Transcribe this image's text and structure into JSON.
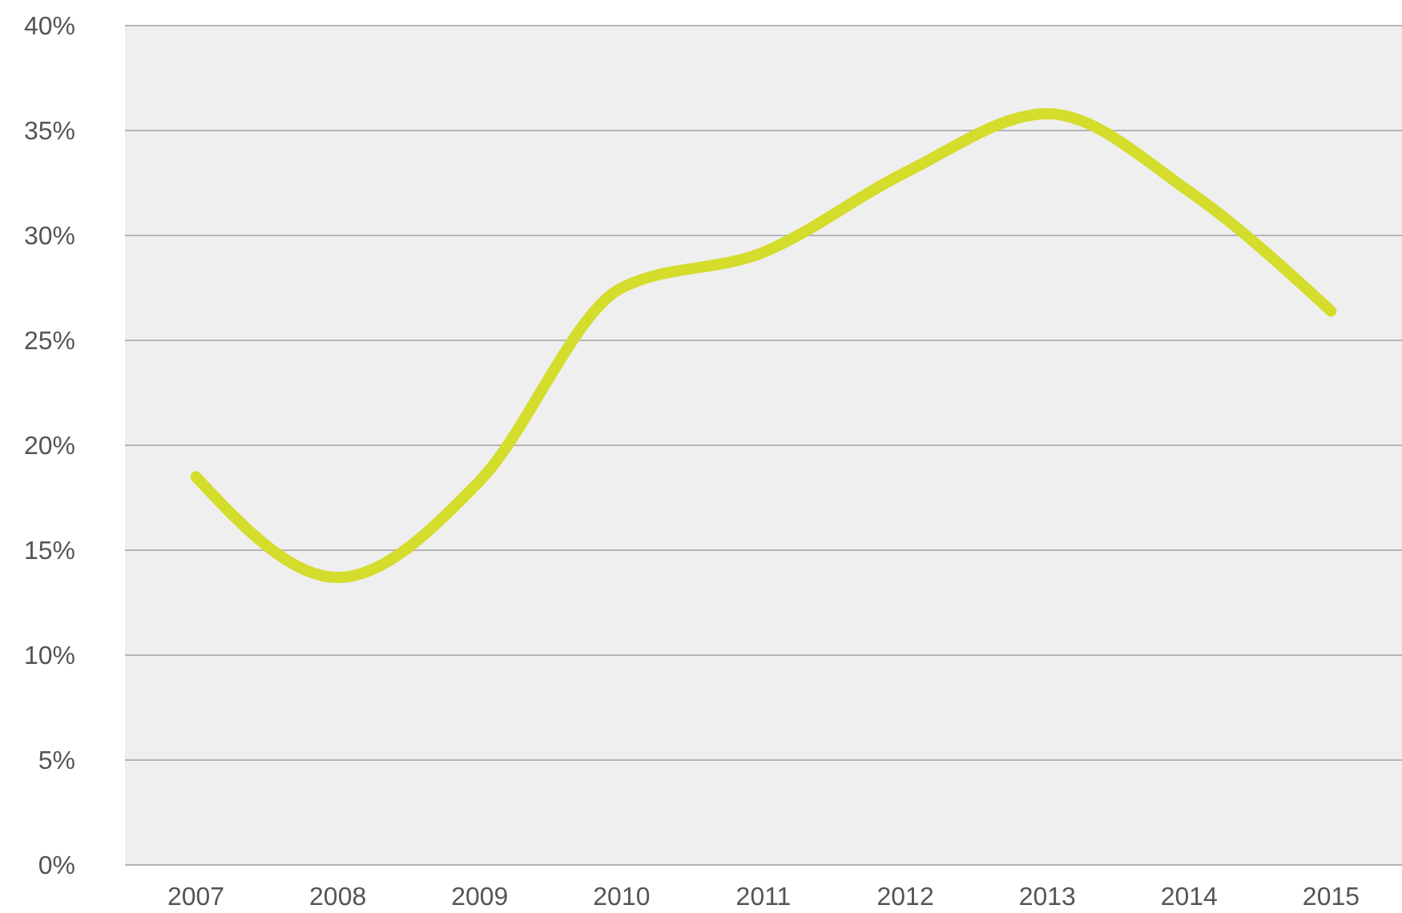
{
  "chart_data": {
    "type": "line",
    "categories": [
      "2007",
      "2008",
      "2009",
      "2010",
      "2011",
      "2012",
      "2013",
      "2014",
      "2015"
    ],
    "series": [
      {
        "color": "#d4dc2c",
        "values": [
          18.5,
          13.7,
          18.3,
          27.5,
          29.2,
          33.0,
          35.8,
          32.1,
          26.4
        ]
      }
    ],
    "ylim": [
      0,
      40
    ],
    "yticks": [
      {
        "value": 0,
        "label": "0%"
      },
      {
        "value": 5,
        "label": "5%"
      },
      {
        "value": 10,
        "label": "10%"
      },
      {
        "value": 15,
        "label": "15%"
      },
      {
        "value": 20,
        "label": "20%"
      },
      {
        "value": 25,
        "label": "25%"
      },
      {
        "value": 30,
        "label": "30%"
      },
      {
        "value": 35,
        "label": "35%"
      },
      {
        "value": 40,
        "label": "40%"
      }
    ],
    "grid": "y",
    "marker": "none",
    "line_style": "solid"
  }
}
